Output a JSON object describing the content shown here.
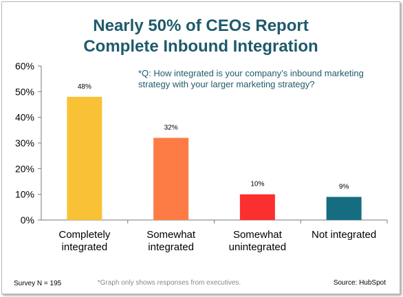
{
  "chart_data": {
    "type": "bar",
    "title_lines": [
      "Nearly 50% of CEOs Report",
      "Complete Inbound Integration"
    ],
    "categories": [
      [
        "Completely",
        "integrated"
      ],
      [
        "Somewhat",
        "integrated"
      ],
      [
        "Somewhat",
        "unintegrated"
      ],
      [
        "Not integrated"
      ]
    ],
    "values": [
      48,
      32,
      10,
      9
    ],
    "value_labels": [
      "48%",
      "32%",
      "10%",
      "9%"
    ],
    "bar_colors": [
      "#f8c136",
      "#fd7c45",
      "#fb2f2f",
      "#166c81"
    ],
    "ylim": [
      0,
      60
    ],
    "yticks": [
      0,
      10,
      20,
      30,
      40,
      50,
      60
    ],
    "ytick_labels": [
      "0%",
      "10%",
      "20%",
      "30%",
      "40%",
      "50%",
      "60%"
    ],
    "xlabel": "",
    "ylabel": "",
    "grid": false,
    "question_lines": [
      "*Q: How integrated is your company’s inbound marketing",
      "strategy with your larger marketing strategy?"
    ]
  },
  "footer": {
    "survey_n": "Survey N = 195",
    "note": "*Graph only shows responses from executives.",
    "source": "Source: HubSpot"
  },
  "colors": {
    "title": "#1e5a6b",
    "axis": "#777777"
  }
}
